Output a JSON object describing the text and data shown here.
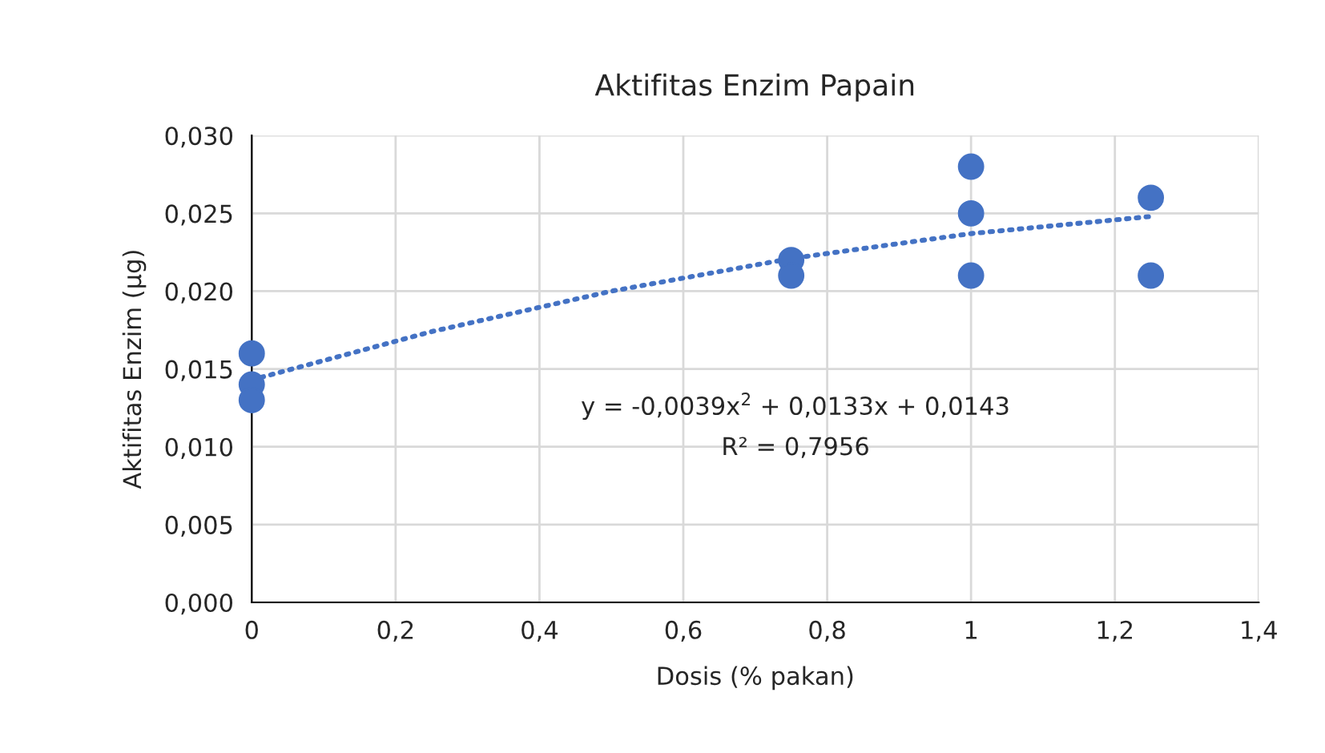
{
  "chart_data": {
    "type": "scatter",
    "title": "Aktifitas Enzim Papain",
    "xlabel": "Dosis (% pakan)",
    "ylabel": "Aktifitas Enzim (µg)",
    "series": [
      {
        "color": "#4472c4",
        "marker": "circle",
        "x": [
          0,
          0,
          0,
          0.75,
          0.75,
          1,
          1,
          1,
          1.25,
          1.25
        ],
        "values": [
          0.016,
          0.014,
          0.013,
          0.022,
          0.021,
          0.028,
          0.025,
          0.021,
          0.026,
          0.021
        ]
      },
      {
        "type": "line",
        "color": "#4472c4",
        "line_style": "dotted",
        "x": [
          0,
          0.25,
          0.5,
          0.75,
          1,
          1.25
        ],
        "values": [
          0.0143,
          0.0174,
          0.02,
          0.0221,
          0.0237,
          0.0248
        ]
      }
    ],
    "annotations": [
      "y = -0,0039x$^{2}$ + 0,0133x + 0,0143",
      "R² = 0,7956"
    ],
    "xlim": [
      0,
      1.4
    ],
    "xticks": [
      0,
      {
        "value": 0.2,
        "label": "0,2"
      },
      {
        "value": 0.4,
        "label": "0,4"
      },
      {
        "value": 0.6,
        "label": "0,6"
      },
      {
        "value": 0.8,
        "label": "0,8"
      },
      1,
      {
        "value": 1.2,
        "label": "1,2"
      },
      {
        "value": 1.4,
        "label": "1,4"
      }
    ],
    "ylim": [
      0,
      0.03
    ],
    "yticks": [
      {
        "value": 0,
        "label": "0,000"
      },
      {
        "value": 0.005,
        "label": "0,005"
      },
      {
        "value": 0.01,
        "label": "0,010"
      },
      {
        "value": 0.015,
        "label": "0,015"
      },
      {
        "value": 0.02,
        "label": "0,020"
      },
      {
        "value": 0.025,
        "label": "0,025"
      },
      {
        "value": 0.03,
        "label": "0,030"
      }
    ],
    "grid": true
  }
}
